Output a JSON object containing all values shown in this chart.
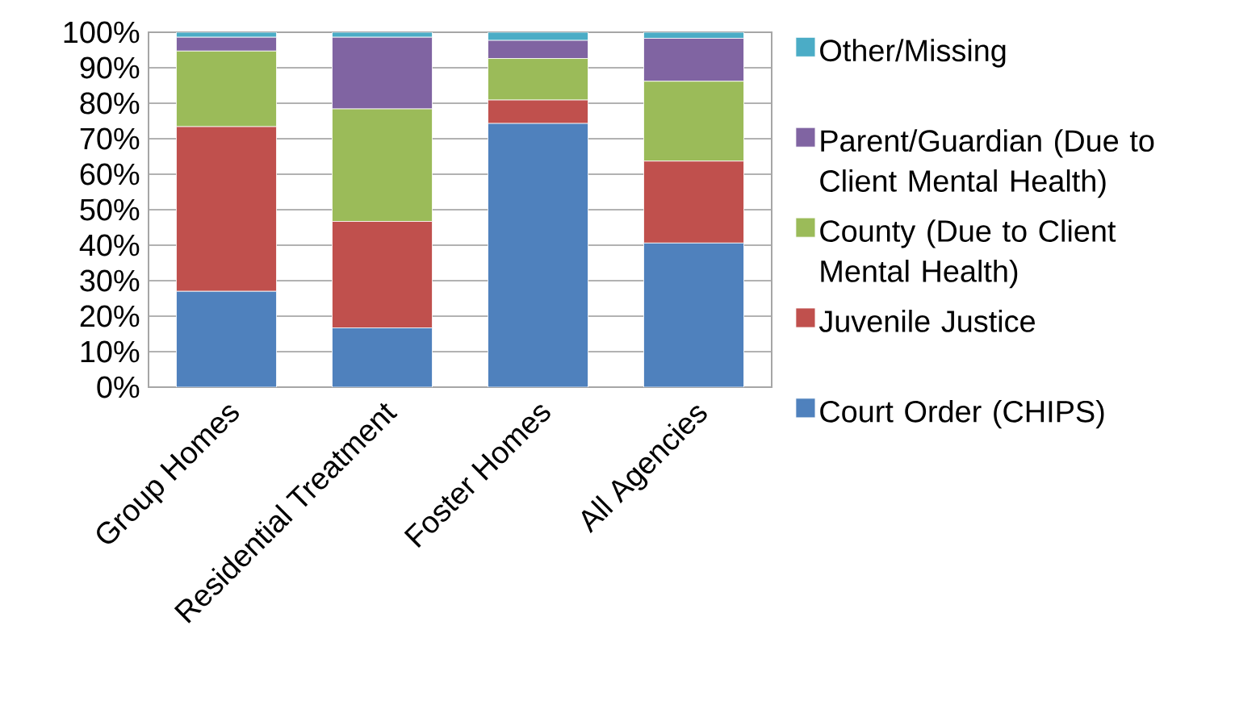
{
  "chart_data": {
    "type": "bar",
    "stacked": true,
    "categories": [
      "Group Homes",
      "Residential Treatment",
      "Foster Homes",
      "All Agencies"
    ],
    "series": [
      {
        "name": "Court Order (CHIPS)",
        "color": "#4f81bd",
        "values": [
          27.0,
          16.7,
          74.3,
          40.6
        ]
      },
      {
        "name": "Juvenile Justice",
        "color": "#c0504d",
        "values": [
          46.4,
          30.0,
          6.6,
          23.1
        ]
      },
      {
        "name": "County (Due to Client Mental Health)",
        "color": "#9bbb59",
        "values": [
          21.3,
          31.7,
          11.7,
          22.5
        ]
      },
      {
        "name": "Parent/Guardian (Due to Client Mental Health)",
        "color": "#8064a2",
        "values": [
          3.9,
          20.2,
          5.1,
          12.1
        ]
      },
      {
        "name": "Other/Missing",
        "color": "#4bacc6",
        "values": [
          1.4,
          1.4,
          2.3,
          1.7
        ]
      }
    ],
    "ylim": [
      0,
      100
    ],
    "yticks": [
      {
        "value": 0,
        "label": "0%"
      },
      {
        "value": 10,
        "label": "10%"
      },
      {
        "value": 20,
        "label": "20%"
      },
      {
        "value": 30,
        "label": "30%"
      },
      {
        "value": 40,
        "label": "40%"
      },
      {
        "value": 50,
        "label": "50%"
      },
      {
        "value": 60,
        "label": "60%"
      },
      {
        "value": 70,
        "label": "70%"
      },
      {
        "value": 80,
        "label": "80%"
      },
      {
        "value": 90,
        "label": "90%"
      },
      {
        "value": 100,
        "label": "100%"
      }
    ],
    "grid": "y",
    "legend": "right"
  }
}
